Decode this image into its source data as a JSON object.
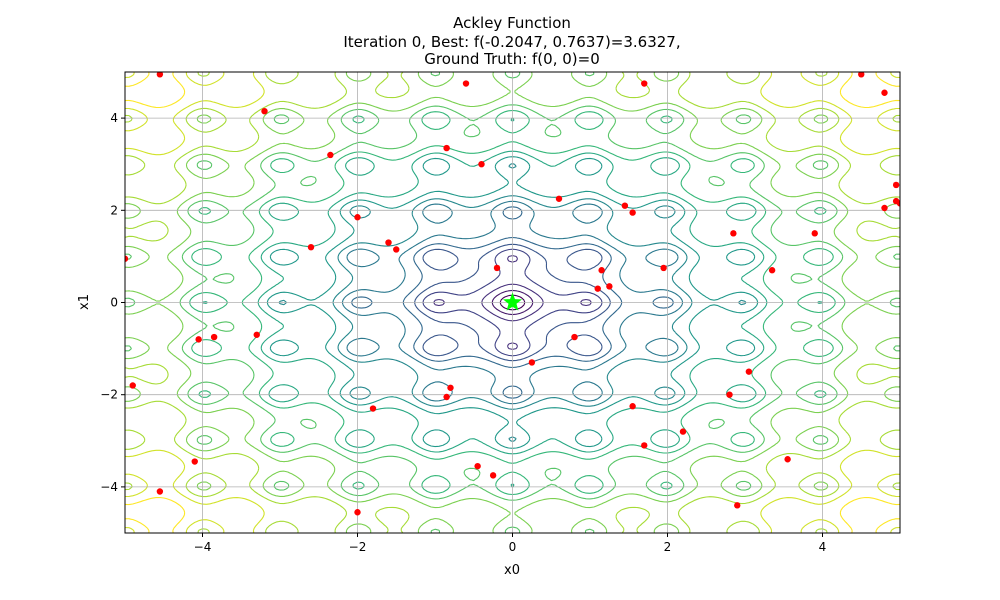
{
  "chart_data": {
    "type": "contour",
    "function": "ackley",
    "title_lines": [
      "Ackley Function",
      "Iteration 0, Best: f(-0.2047, 0.7637)=3.6327,",
      "Ground Truth: f(0, 0)=0"
    ],
    "xlabel": "x0",
    "ylabel": "x1",
    "xlim": [
      -5,
      5
    ],
    "ylim": [
      -5,
      5
    ],
    "xticks": [
      -4,
      -2,
      0,
      2,
      4
    ],
    "yticks": [
      -4,
      -2,
      0,
      2,
      4
    ],
    "grid": true,
    "colormap": "viridis",
    "ground_truth": {
      "x": 0,
      "y": 0,
      "color": "#00ff00",
      "marker": "star"
    },
    "points_color": "#ff0000",
    "points": [
      [
        -4.55,
        4.95
      ],
      [
        -0.6,
        4.75
      ],
      [
        1.7,
        4.75
      ],
      [
        4.5,
        4.95
      ],
      [
        4.8,
        4.55
      ],
      [
        -3.2,
        4.15
      ],
      [
        -2.35,
        3.2
      ],
      [
        -0.85,
        3.35
      ],
      [
        -0.4,
        3.0
      ],
      [
        4.95,
        2.55
      ],
      [
        4.95,
        2.2
      ],
      [
        5.0,
        2.15
      ],
      [
        4.8,
        2.05
      ],
      [
        0.6,
        2.25
      ],
      [
        1.45,
        2.1
      ],
      [
        1.55,
        1.95
      ],
      [
        -2.0,
        1.85
      ],
      [
        2.85,
        1.5
      ],
      [
        3.9,
        1.5
      ],
      [
        -1.6,
        1.3
      ],
      [
        -1.5,
        1.15
      ],
      [
        -2.6,
        1.2
      ],
      [
        -5.0,
        0.95
      ],
      [
        -0.2,
        0.75
      ],
      [
        1.15,
        0.7
      ],
      [
        1.95,
        0.75
      ],
      [
        3.35,
        0.7
      ],
      [
        1.1,
        0.3
      ],
      [
        1.25,
        0.35
      ],
      [
        -3.3,
        -0.7
      ],
      [
        -3.85,
        -0.75
      ],
      [
        -4.05,
        -0.8
      ],
      [
        0.8,
        -0.75
      ],
      [
        0.25,
        -1.3
      ],
      [
        3.05,
        -1.5
      ],
      [
        -4.9,
        -1.8
      ],
      [
        -0.8,
        -1.85
      ],
      [
        -0.85,
        -2.05
      ],
      [
        2.8,
        -2.0
      ],
      [
        -1.8,
        -2.3
      ],
      [
        1.55,
        -2.25
      ],
      [
        2.2,
        -2.8
      ],
      [
        1.7,
        -3.1
      ],
      [
        -4.1,
        -3.45
      ],
      [
        -0.45,
        -3.55
      ],
      [
        -0.25,
        -3.75
      ],
      [
        3.55,
        -3.4
      ],
      [
        -4.55,
        -4.1
      ],
      [
        2.9,
        -4.4
      ],
      [
        -2.0,
        -4.55
      ]
    ]
  }
}
